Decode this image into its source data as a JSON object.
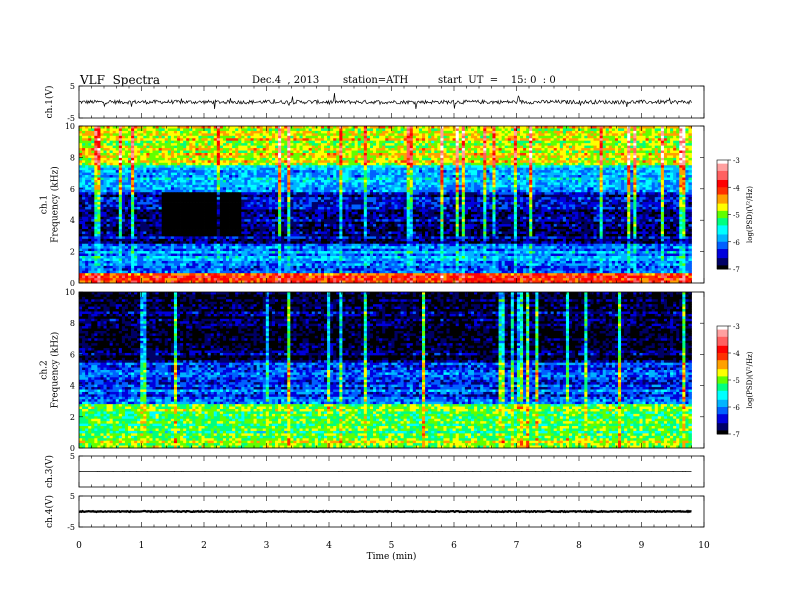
{
  "header": {
    "title": "VLF  Spectra",
    "date": "Dec.4  , 2013",
    "station": "station=ATH",
    "start": "start  UT  =    15: 0  : 0"
  },
  "colors": {
    "colormap": [
      "#000000",
      "#000066",
      "#0000dd",
      "#0060ff",
      "#00b4ff",
      "#00ffff",
      "#00ff80",
      "#60ff00",
      "#ffff00",
      "#ffa000",
      "#ff3000",
      "#ff0000",
      "#ff6060",
      "#ffa0a0",
      "#ffffff"
    ],
    "trace": "#000000"
  },
  "panels": {
    "ch1_wave": {
      "ylabel": "ch.1(V)",
      "ticks": [
        "5",
        "-5"
      ]
    },
    "ch1_spec": {
      "ylabel": "ch.1\nFrequency  (kHz)",
      "ticks": [
        "10",
        "8",
        "6",
        "4",
        "2",
        "0"
      ]
    },
    "ch2_spec": {
      "ylabel": "ch.2\nFrequency  (kHz)",
      "ticks": [
        "10",
        "8",
        "6",
        "4",
        "2",
        "0"
      ]
    },
    "ch3_wave": {
      "ylabel": "ch.3(V)",
      "ticks": [
        "5"
      ]
    },
    "ch4_wave": {
      "ylabel": "ch.4(V)",
      "ticks": [
        "5",
        "-5"
      ]
    }
  },
  "colorbars": [
    {
      "label": "log(PSD)(V²/Hz)",
      "ticks": [
        "-3",
        "-4",
        "-5",
        "-6",
        "-7"
      ]
    },
    {
      "label": "log(PSD)(V²/Hz)",
      "ticks": [
        "-3",
        "-4",
        "-5",
        "-6",
        "-7"
      ]
    }
  ],
  "xaxis": {
    "label": "Time  (min)",
    "ticks": [
      "0",
      "1",
      "2",
      "3",
      "4",
      "5",
      "6",
      "7",
      "8",
      "9",
      "10"
    ]
  },
  "chart_data": [
    {
      "type": "line",
      "title": "ch.1(V)",
      "xlabel": "Time  (min)",
      "ylabel": "ch.1(V)",
      "xlim": [
        0,
        10
      ],
      "ylim": [
        -5,
        5
      ],
      "data_end_min": 9.8,
      "baseline": 0,
      "fluctuation": 0.6
    },
    {
      "type": "heatmap",
      "ylabel": "ch.1 Frequency (kHz)",
      "xlim": [
        0,
        10
      ],
      "ylim": [
        0,
        10
      ],
      "color_scale": "log(PSD)(V²/Hz)",
      "clim": [
        -7,
        -3
      ],
      "data_end_min": 9.8,
      "bands": [
        {
          "f_low": 0,
          "f_high": 0.7,
          "log_psd": -4.0
        },
        {
          "f_low": 0.7,
          "f_high": 2.5,
          "log_psd": -6.0
        },
        {
          "f_low": 2.5,
          "f_high": 5.8,
          "log_psd": -6.6
        },
        {
          "f_low": 5.8,
          "f_high": 7.5,
          "log_psd": -5.8
        },
        {
          "f_low": 7.5,
          "f_high": 10,
          "log_psd": -4.8
        }
      ],
      "quiet_interval_min": [
        1.3,
        2.6
      ]
    },
    {
      "type": "heatmap",
      "ylabel": "ch.2 Frequency (kHz)",
      "xlim": [
        0,
        10
      ],
      "ylim": [
        0,
        10
      ],
      "color_scale": "log(PSD)(V²/Hz)",
      "clim": [
        -7,
        -3
      ],
      "data_end_min": 9.8,
      "bands": [
        {
          "f_low": 0,
          "f_high": 0.7,
          "log_psd": -4.8
        },
        {
          "f_low": 0.7,
          "f_high": 2.8,
          "log_psd": -5.2
        },
        {
          "f_low": 2.8,
          "f_high": 5.5,
          "log_psd": -6.2
        },
        {
          "f_low": 5.5,
          "f_high": 10,
          "log_psd": -6.8
        }
      ]
    },
    {
      "type": "line",
      "title": "ch.3(V)",
      "xlabel": "Time  (min)",
      "ylabel": "ch.3(V)",
      "xlim": [
        0,
        10
      ],
      "ylim": [
        -5,
        5
      ],
      "data_end_min": 9.8,
      "baseline": 0,
      "fluctuation": 0.02
    },
    {
      "type": "line",
      "title": "ch.4(V)",
      "xlabel": "Time  (min)",
      "ylabel": "ch.4(V)",
      "xlim": [
        0,
        10
      ],
      "ylim": [
        -5,
        5
      ],
      "data_end_min": 9.8,
      "baseline": 0,
      "fluctuation": 0.15
    }
  ]
}
